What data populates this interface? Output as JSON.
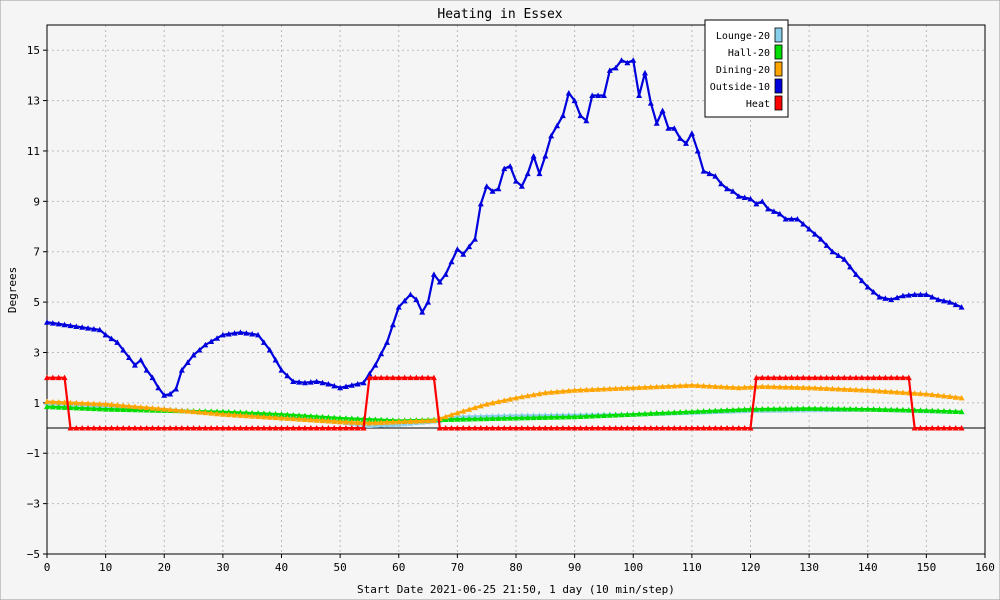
{
  "chart_data": {
    "type": "line",
    "title": "Heating in Essex",
    "xlabel": "Start Date 2021-06-25 21:50, 1 day (10 min/step)",
    "ylabel": "Degrees",
    "xlim": [
      0,
      160
    ],
    "ylim": [
      -5,
      16
    ],
    "x_ticks": [
      0,
      10,
      20,
      30,
      40,
      50,
      60,
      70,
      80,
      90,
      100,
      110,
      120,
      130,
      140,
      150,
      160
    ],
    "y_ticks": [
      -5,
      -3,
      -1,
      1,
      3,
      5,
      7,
      9,
      11,
      13,
      15
    ],
    "grid": true,
    "legend_position": "top-right",
    "series": [
      {
        "name": "Lounge-20",
        "color": "#87ceeb",
        "values": [
          [
            0,
            1.0
          ],
          [
            10,
            0.85
          ],
          [
            20,
            0.75
          ],
          [
            30,
            0.6
          ],
          [
            40,
            0.45
          ],
          [
            50,
            0.25
          ],
          [
            55,
            0.1
          ],
          [
            60,
            0.15
          ],
          [
            67,
            0.3
          ],
          [
            70,
            0.45
          ],
          [
            80,
            0.5
          ],
          [
            100,
            0.55
          ],
          [
            120,
            0.7
          ],
          [
            140,
            0.75
          ],
          [
            156,
            0.65
          ]
        ]
      },
      {
        "name": "Hall-20",
        "color": "#00dd00",
        "values": [
          [
            0,
            0.85
          ],
          [
            10,
            0.75
          ],
          [
            20,
            0.7
          ],
          [
            30,
            0.65
          ],
          [
            40,
            0.55
          ],
          [
            50,
            0.4
          ],
          [
            55,
            0.35
          ],
          [
            60,
            0.3
          ],
          [
            70,
            0.35
          ],
          [
            80,
            0.4
          ],
          [
            90,
            0.45
          ],
          [
            100,
            0.55
          ],
          [
            110,
            0.65
          ],
          [
            120,
            0.75
          ],
          [
            130,
            0.78
          ],
          [
            140,
            0.75
          ],
          [
            150,
            0.7
          ],
          [
            156,
            0.65
          ]
        ]
      },
      {
        "name": "Dining-20",
        "color": "#ffa500",
        "values": [
          [
            0,
            1.05
          ],
          [
            10,
            0.95
          ],
          [
            20,
            0.75
          ],
          [
            30,
            0.55
          ],
          [
            40,
            0.4
          ],
          [
            50,
            0.25
          ],
          [
            55,
            0.2
          ],
          [
            60,
            0.25
          ],
          [
            66,
            0.3
          ],
          [
            70,
            0.6
          ],
          [
            75,
            0.95
          ],
          [
            80,
            1.2
          ],
          [
            85,
            1.4
          ],
          [
            90,
            1.5
          ],
          [
            100,
            1.6
          ],
          [
            110,
            1.7
          ],
          [
            118,
            1.6
          ],
          [
            122,
            1.65
          ],
          [
            130,
            1.6
          ],
          [
            140,
            1.5
          ],
          [
            150,
            1.35
          ],
          [
            156,
            1.2
          ]
        ]
      },
      {
        "name": "Outside-10",
        "color": "#0000dd",
        "values": [
          [
            0,
            4.2
          ],
          [
            3,
            4.1
          ],
          [
            6,
            4.0
          ],
          [
            9,
            3.9
          ],
          [
            10,
            3.7
          ],
          [
            12,
            3.4
          ],
          [
            14,
            2.8
          ],
          [
            15,
            2.5
          ],
          [
            16,
            2.7
          ],
          [
            17,
            2.3
          ],
          [
            18,
            2.0
          ],
          [
            19,
            1.6
          ],
          [
            20,
            1.3
          ],
          [
            21,
            1.35
          ],
          [
            22,
            1.55
          ],
          [
            23,
            2.3
          ],
          [
            25,
            2.9
          ],
          [
            27,
            3.3
          ],
          [
            30,
            3.7
          ],
          [
            33,
            3.8
          ],
          [
            36,
            3.7
          ],
          [
            38,
            3.1
          ],
          [
            40,
            2.3
          ],
          [
            42,
            1.85
          ],
          [
            44,
            1.8
          ],
          [
            46,
            1.85
          ],
          [
            48,
            1.75
          ],
          [
            50,
            1.6
          ],
          [
            52,
            1.7
          ],
          [
            54,
            1.8
          ],
          [
            56,
            2.5
          ],
          [
            58,
            3.4
          ],
          [
            59,
            4.1
          ],
          [
            60,
            4.8
          ],
          [
            62,
            5.3
          ],
          [
            63,
            5.1
          ],
          [
            64,
            4.6
          ],
          [
            65,
            5.0
          ],
          [
            66,
            6.1
          ],
          [
            67,
            5.8
          ],
          [
            68,
            6.1
          ],
          [
            69,
            6.6
          ],
          [
            70,
            7.1
          ],
          [
            71,
            6.9
          ],
          [
            72,
            7.2
          ],
          [
            73,
            7.5
          ],
          [
            74,
            8.9
          ],
          [
            75,
            9.6
          ],
          [
            76,
            9.4
          ],
          [
            77,
            9.5
          ],
          [
            78,
            10.3
          ],
          [
            79,
            10.4
          ],
          [
            80,
            9.8
          ],
          [
            81,
            9.6
          ],
          [
            82,
            10.1
          ],
          [
            83,
            10.8
          ],
          [
            84,
            10.1
          ],
          [
            85,
            10.8
          ],
          [
            86,
            11.6
          ],
          [
            87,
            12.0
          ],
          [
            88,
            12.4
          ],
          [
            89,
            13.3
          ],
          [
            90,
            13.0
          ],
          [
            91,
            12.4
          ],
          [
            92,
            12.2
          ],
          [
            93,
            13.2
          ],
          [
            94,
            13.2
          ],
          [
            95,
            13.2
          ],
          [
            96,
            14.2
          ],
          [
            97,
            14.3
          ],
          [
            98,
            14.6
          ],
          [
            99,
            14.5
          ],
          [
            100,
            14.6
          ],
          [
            101,
            13.2
          ],
          [
            102,
            14.1
          ],
          [
            103,
            12.9
          ],
          [
            104,
            12.1
          ],
          [
            105,
            12.6
          ],
          [
            106,
            11.9
          ],
          [
            107,
            11.9
          ],
          [
            108,
            11.5
          ],
          [
            109,
            11.3
          ],
          [
            110,
            11.7
          ],
          [
            111,
            11.0
          ],
          [
            112,
            10.2
          ],
          [
            113,
            10.1
          ],
          [
            114,
            10.0
          ],
          [
            115,
            9.7
          ],
          [
            116,
            9.5
          ],
          [
            117,
            9.4
          ],
          [
            118,
            9.2
          ],
          [
            120,
            9.1
          ],
          [
            121,
            8.9
          ],
          [
            122,
            9.0
          ],
          [
            123,
            8.7
          ],
          [
            124,
            8.6
          ],
          [
            125,
            8.5
          ],
          [
            126,
            8.3
          ],
          [
            128,
            8.3
          ],
          [
            130,
            7.9
          ],
          [
            132,
            7.5
          ],
          [
            134,
            7.0
          ],
          [
            136,
            6.7
          ],
          [
            138,
            6.1
          ],
          [
            140,
            5.6
          ],
          [
            142,
            5.2
          ],
          [
            144,
            5.1
          ],
          [
            146,
            5.25
          ],
          [
            148,
            5.3
          ],
          [
            150,
            5.3
          ],
          [
            152,
            5.1
          ],
          [
            154,
            5.0
          ],
          [
            156,
            4.8
          ]
        ]
      },
      {
        "name": "Heat",
        "color": "#ff0000",
        "values": [
          [
            0,
            2.0
          ],
          [
            3,
            2.0
          ],
          [
            4,
            0.0
          ],
          [
            54,
            0.0
          ],
          [
            55,
            2.0
          ],
          [
            66,
            2.0
          ],
          [
            67,
            0.0
          ],
          [
            120,
            0.0
          ],
          [
            121,
            2.0
          ],
          [
            147,
            2.0
          ],
          [
            148,
            0.0
          ],
          [
            156,
            0.0
          ]
        ]
      }
    ]
  }
}
